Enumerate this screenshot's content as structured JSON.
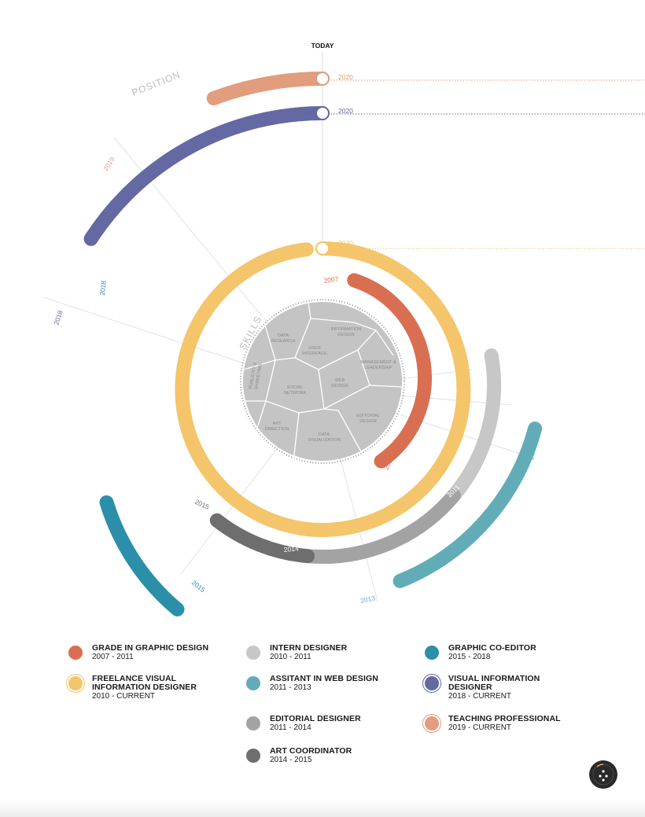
{
  "header": {
    "today_label": "TODAY"
  },
  "section_labels": {
    "position": "POSITION",
    "skills": "SKILLS"
  },
  "colors": {
    "teaching": "#E29C7E",
    "visual_info": "#6468A3",
    "freelance": "#F4C56A",
    "grade": "#D96F52",
    "intern": "#C7C7C7",
    "assistant_web": "#62ACB8",
    "editorial": "#A3A3A3",
    "art_coordinator": "#6E6E6E",
    "graphic_coeditor": "#2C8FA9",
    "skills_disc": "#C4C4C4"
  },
  "arcs": [
    {
      "id": "teaching",
      "start_label": "2019",
      "end_label": "2020",
      "color": "#E29C7E"
    },
    {
      "id": "visual_info",
      "start_label": "2018",
      "end_label": "2020",
      "color": "#6468A3"
    },
    {
      "id": "graphic_coeditor",
      "start_label": "2018",
      "end_label": "2015",
      "color": "#2C8FA9"
    },
    {
      "id": "freelance",
      "start_label": "2010",
      "end_label": "2020",
      "color": "#F4C56A"
    },
    {
      "id": "grade",
      "start_label": "2007",
      "end_label": "2011",
      "color": "#D96F52"
    },
    {
      "id": "intern",
      "start_label": "2010",
      "end_label": "2011",
      "color": "#C7C7C7"
    },
    {
      "id": "editorial",
      "start_label": "2011",
      "end_label": "2014",
      "color": "#A3A3A3"
    },
    {
      "id": "art_coordinator",
      "start_label": "2015",
      "end_label": "2014",
      "color": "#6E6E6E"
    },
    {
      "id": "assistant_web",
      "start_label": "2011",
      "end_label": "2013",
      "color": "#62ACB8"
    }
  ],
  "skills": [
    "DATA RESEARCH",
    "INFORMATION DESIGN",
    "USER INTERFACE",
    "MANAGEMENT & LEADERSHIP",
    "PUBLICITY & MARKETING",
    "WEB DESIGN",
    "SOCIAL NETWORK",
    "EDITORIAL DESIGN",
    "ART DIRECTION",
    "DATA VISUALIZATION"
  ],
  "legend": [
    {
      "title": "GRADE IN GRAPHIC DESIGN",
      "range": "2007 - 2011",
      "color": "#D96F52",
      "ring": false
    },
    {
      "title": "INTERN DESIGNER",
      "range": "2010 - 2011",
      "color": "#C7C7C7",
      "ring": false
    },
    {
      "title": "GRAPHIC CO-EDITOR",
      "range": "2015 - 2018",
      "color": "#2C8FA9",
      "ring": false
    },
    {
      "title": "FREELANCE VISUAL INFORMATION DESIGNER",
      "range": "2010 - CURRENT",
      "color": "#F4C56A",
      "ring": true
    },
    {
      "title": "ASSITANT IN WEB DESIGN",
      "range": "2011 - 2013",
      "color": "#62ACB8",
      "ring": false
    },
    {
      "title": "VISUAL INFORMATION DESIGNER",
      "range": "2018 - CURRENT",
      "color": "#6468A3",
      "ring": true
    },
    {
      "title": "EDITORIAL DESIGNER",
      "range": "2011 - 2014",
      "color": "#A3A3A3",
      "ring": false
    },
    {
      "title": "TEACHING PROFESSIONAL",
      "range": "2019 - CURRENT",
      "color": "#E29C7E",
      "ring": true
    },
    {
      "title": "ART  COORDINATOR",
      "range": "2014 - 2015",
      "color": "#6E6E6E",
      "ring": false
    }
  ]
}
